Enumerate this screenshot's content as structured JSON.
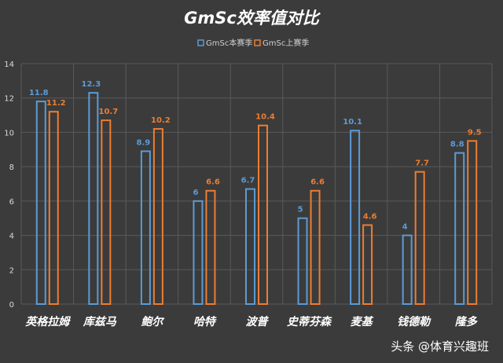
{
  "chart_data": {
    "type": "bar",
    "title": "GmSc效率值对比",
    "categories": [
      "英格拉姆",
      "库兹马",
      "鲍尔",
      "哈特",
      "波普",
      "史蒂芬森",
      "麦基",
      "钱德勒",
      "隆多"
    ],
    "series": [
      {
        "name": "GmSc本赛季",
        "color": "#5b9bd5",
        "values": [
          11.8,
          12.3,
          8.9,
          6,
          6.7,
          5,
          10.1,
          4,
          8.8
        ]
      },
      {
        "name": "GmSc上赛季",
        "color": "#ed7d31",
        "values": [
          11.2,
          10.7,
          10.2,
          6.6,
          10.4,
          6.6,
          4.6,
          7.7,
          9.5
        ]
      }
    ],
    "ylim": [
      0,
      14
    ],
    "yticks": [
      0,
      2,
      4,
      6,
      8,
      10,
      12,
      14
    ],
    "grid": true,
    "legend": "top-center",
    "xlabel": "",
    "ylabel": ""
  },
  "watermark": "头条 @体育兴趣班",
  "colors": {
    "background": "#3b3b3b",
    "grid": "#5a5a5a"
  }
}
